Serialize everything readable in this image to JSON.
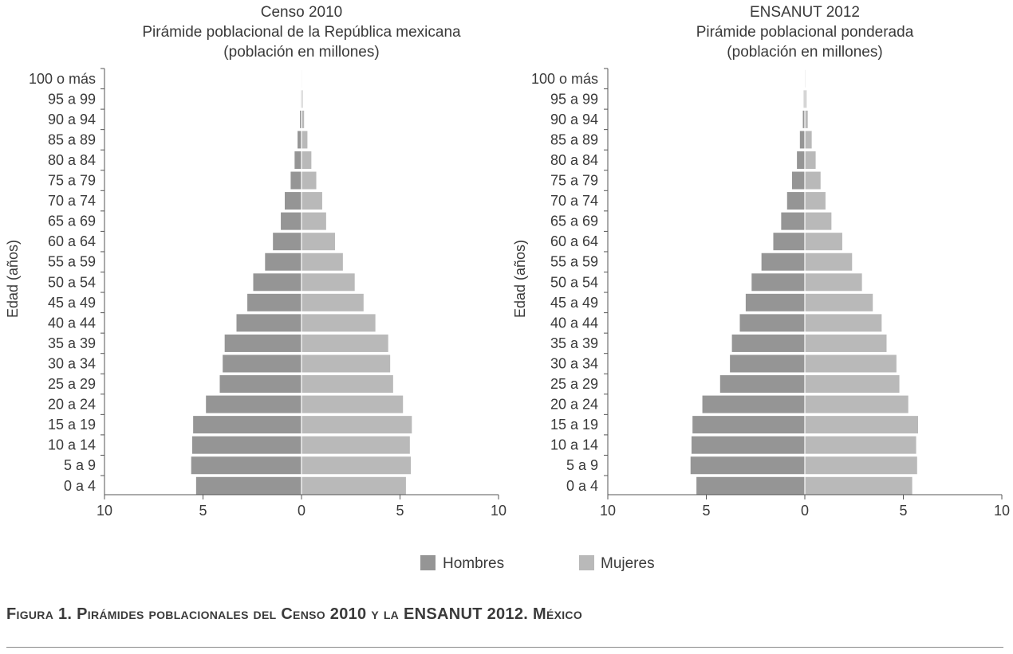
{
  "colors": {
    "hombres": "#959595",
    "mujeres": "#b9b9b9",
    "axis": "#555555"
  },
  "legend": {
    "hombres": "Hombres",
    "mujeres": "Mujeres"
  },
  "caption": "Figura 1. Pirámides poblacionales del Censo 2010 y la ENSANUT 2012. México",
  "chart_data": [
    {
      "type": "bar",
      "orientation": "horizontal-pyramid",
      "title": [
        "Censo 2010",
        "Pirámide poblacional de la República mexicana",
        "(población en millones)"
      ],
      "ylabel": "Edad (años)",
      "xlabel": "",
      "xlim": [
        -10,
        10
      ],
      "xticks": [
        "10",
        "5",
        "0",
        "5",
        "10"
      ],
      "legend_position": "bottom-center",
      "categories": [
        "100 o más",
        "95 a 99",
        "90 a 94",
        "85 a 89",
        "80 a 84",
        "75 a 79",
        "70 a 74",
        "65 a 69",
        "60 a 64",
        "55 a 59",
        "50 a 54",
        "45 a 49",
        "40 a 44",
        "35 a 39",
        "30 a 34",
        "25 a 29",
        "20 a 24",
        "15 a 19",
        "10 a 14",
        "5 a 9",
        "0 a 4"
      ],
      "series": [
        {
          "name": "Hombres",
          "values": [
            0.01,
            0.03,
            0.08,
            0.2,
            0.35,
            0.55,
            0.85,
            1.05,
            1.45,
            1.85,
            2.45,
            2.75,
            3.3,
            3.9,
            4.0,
            4.15,
            4.85,
            5.5,
            5.55,
            5.6,
            5.35
          ]
        },
        {
          "name": "Mujeres",
          "values": [
            0.02,
            0.06,
            0.13,
            0.3,
            0.5,
            0.75,
            1.05,
            1.25,
            1.7,
            2.1,
            2.7,
            3.15,
            3.75,
            4.4,
            4.5,
            4.65,
            5.15,
            5.6,
            5.5,
            5.55,
            5.3
          ]
        }
      ]
    },
    {
      "type": "bar",
      "orientation": "horizontal-pyramid",
      "title": [
        "ENSANUT 2012",
        "Pirámide poblacional ponderada",
        "(población en millones)"
      ],
      "ylabel": "Edad (años)",
      "xlabel": "",
      "xlim": [
        -10,
        10
      ],
      "xticks": [
        "10",
        "5",
        "0",
        "5",
        "10"
      ],
      "legend_position": "bottom-center",
      "categories": [
        "100 o más",
        "95 a 99",
        "90 a 94",
        "85 a 89",
        "80 a 84",
        "75 a 79",
        "70 a 74",
        "65 a 69",
        "60 a 64",
        "55 a 59",
        "50 a 54",
        "45 a 49",
        "40 a 44",
        "35 a 39",
        "30 a 34",
        "25 a 29",
        "20 a 24",
        "15 a 19",
        "10 a 14",
        "5 a 9",
        "0 a 4"
      ],
      "series": [
        {
          "name": "Hombres",
          "values": [
            0.02,
            0.05,
            0.1,
            0.25,
            0.4,
            0.65,
            0.9,
            1.2,
            1.6,
            2.2,
            2.7,
            3.0,
            3.3,
            3.7,
            3.8,
            4.3,
            5.2,
            5.7,
            5.75,
            5.8,
            5.5
          ]
        },
        {
          "name": "Mujeres",
          "values": [
            0.03,
            0.08,
            0.15,
            0.35,
            0.55,
            0.8,
            1.05,
            1.35,
            1.9,
            2.4,
            2.9,
            3.45,
            3.9,
            4.15,
            4.65,
            4.8,
            5.25,
            5.75,
            5.65,
            5.7,
            5.45
          ]
        }
      ]
    }
  ]
}
